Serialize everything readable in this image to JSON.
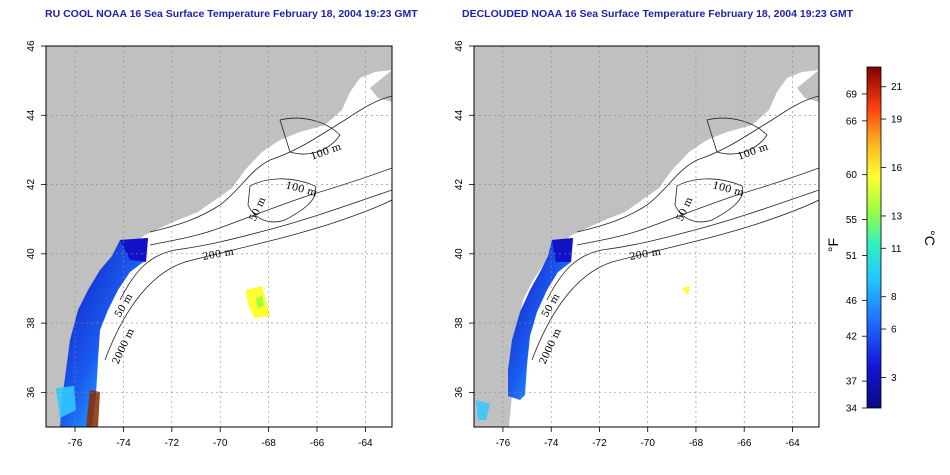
{
  "panels": [
    {
      "id": "raw",
      "title": "RU COOL NOAA 16 Sea Surface Temperature February 18, 2004 19:23 GMT",
      "contour_labels": [
        "100 m",
        "100 m",
        "50 m",
        "200 m",
        "50 m",
        "2000 m"
      ]
    },
    {
      "id": "declouded",
      "title": "DECLOUDED NOAA 16 Sea Surface Temperature February 18, 2004 19:23 GMT",
      "contour_labels": [
        "100 m",
        "100 m",
        "50 m",
        "200 m",
        "50 m",
        "2000 m"
      ]
    }
  ],
  "axes": {
    "x_ticks": [
      -76,
      -74,
      -72,
      -70,
      -68,
      -66,
      -64
    ],
    "y_ticks": [
      36,
      38,
      40,
      42,
      44,
      46
    ],
    "x_tick_labels": [
      "-76",
      "-74",
      "-72",
      "-70",
      "-68",
      "-66",
      "-64"
    ],
    "y_tick_labels": [
      "36",
      "38",
      "40",
      "42",
      "44",
      "46"
    ],
    "xlim": [
      -77.2,
      -62.9
    ],
    "ylim": [
      35,
      46
    ]
  },
  "colorbar": {
    "fahrenheit_label": "°F",
    "celsius_label": "°C",
    "fahrenheit_ticks": [
      "69",
      "66",
      "60",
      "55",
      "51",
      "46",
      "42",
      "37",
      "34"
    ],
    "fahrenheit_values": [
      69,
      66,
      60,
      55,
      51,
      46,
      42,
      37,
      34
    ],
    "celsius_ticks": [
      "21",
      "19",
      "16",
      "13",
      "11",
      "8",
      "6",
      "3"
    ],
    "celsius_values": [
      21,
      19,
      16,
      13,
      11,
      8,
      6,
      3
    ],
    "range_f": [
      34,
      72
    ]
  },
  "colors": {
    "land": "#c0c0c0",
    "title": "#1f1fae",
    "sst_cold": "#1010c8",
    "sst_warm": "#ffff30"
  }
}
